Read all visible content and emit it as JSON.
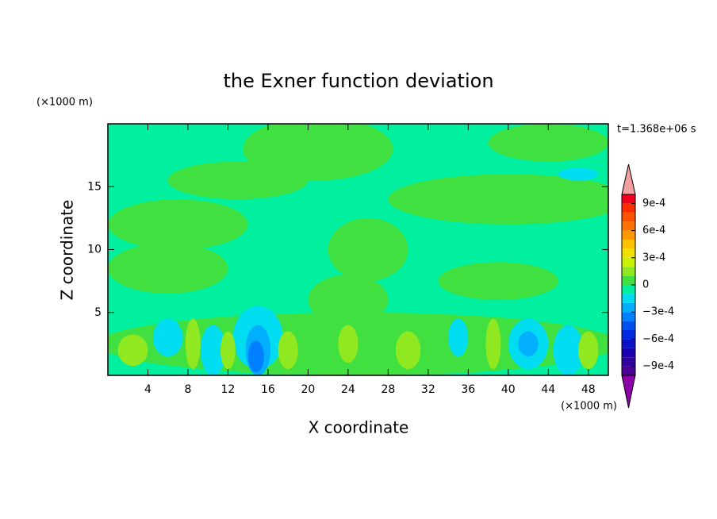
{
  "chart_data": {
    "type": "contour",
    "title": "the Exner function deviation",
    "xlabel": "X coordinate",
    "ylabel": "Z coordinate",
    "x_unit": "(×1000 m)",
    "y_unit": "(×1000 m)",
    "annotation": "t=1.368e+06 s",
    "xlim": [
      0,
      50
    ],
    "ylim": [
      0,
      20
    ],
    "xticks": [
      4,
      8,
      12,
      16,
      20,
      24,
      28,
      32,
      36,
      40,
      44,
      48
    ],
    "yticks": [
      5,
      10,
      15
    ],
    "levels_lim": [
      -0.001,
      0.001
    ],
    "level_step": 0.0001,
    "level_colors": [
      "#4a0096",
      "#30009c",
      "#1a00b0",
      "#0a10c8",
      "#0028e0",
      "#0050f0",
      "#0080ff",
      "#00b0ff",
      "#00dcf0",
      "#00f0a0",
      "#40e040",
      "#90e820",
      "#c8f000",
      "#f0e000",
      "#ffc000",
      "#ff9900",
      "#ff7300",
      "#ff5000",
      "#ff2a00",
      "#f0001e"
    ],
    "under_color": "#8c00a8",
    "over_color": "#f4a0a0",
    "colorbar_ticks": [
      {
        "value": 0.0009,
        "label": "9e-4"
      },
      {
        "value": 0.0006,
        "label": "6e-4"
      },
      {
        "value": 0.0003,
        "label": "3e-4"
      },
      0,
      {
        "value": -0.0003,
        "label": "−3e-4"
      },
      {
        "value": -0.0006,
        "label": "−6e-4"
      },
      {
        "value": -0.0009,
        "label": "−9e-4"
      }
    ],
    "background_value": -5e-05,
    "features": [
      {
        "x": 7,
        "z": 12,
        "w": 14,
        "h": 4,
        "value": 5e-05
      },
      {
        "x": 6,
        "z": 8.5,
        "w": 12,
        "h": 4,
        "value": 5e-05
      },
      {
        "x": 21,
        "z": 18,
        "w": 15,
        "h": 5,
        "value": 5e-05
      },
      {
        "x": 13,
        "z": 15.5,
        "w": 14,
        "h": 3,
        "value": 5e-05
      },
      {
        "x": 40,
        "z": 14,
        "w": 24,
        "h": 4,
        "value": 5e-05
      },
      {
        "x": 44,
        "z": 18.5,
        "w": 12,
        "h": 3,
        "value": 5e-05
      },
      {
        "x": 26,
        "z": 10,
        "w": 8,
        "h": 5,
        "value": 5e-05
      },
      {
        "x": 39,
        "z": 7.5,
        "w": 12,
        "h": 3,
        "value": 5e-05
      },
      {
        "x": 25,
        "z": 2.5,
        "w": 52,
        "h": 5,
        "value": 5e-05
      },
      {
        "x": 24,
        "z": 6,
        "w": 8,
        "h": 4,
        "value": 5e-05
      },
      {
        "x": 6,
        "z": 3,
        "w": 3,
        "h": 3,
        "value": -0.00015
      },
      {
        "x": 10.5,
        "z": 2,
        "w": 2.5,
        "h": 4,
        "value": -0.00015
      },
      {
        "x": 15,
        "z": 3,
        "w": 5,
        "h": 5,
        "value": -0.00015
      },
      {
        "x": 35,
        "z": 3,
        "w": 2,
        "h": 3,
        "value": -0.00015
      },
      {
        "x": 42,
        "z": 2.5,
        "w": 4,
        "h": 4,
        "value": -0.00015
      },
      {
        "x": 46,
        "z": 2,
        "w": 3,
        "h": 4,
        "value": -0.00015
      },
      {
        "x": 47,
        "z": 16,
        "w": 4,
        "h": 1,
        "value": -0.00015
      },
      {
        "x": 15,
        "z": 2,
        "w": 2.5,
        "h": 4,
        "value": -0.00025
      },
      {
        "x": 42,
        "z": 2.5,
        "w": 2,
        "h": 2,
        "value": -0.00025
      },
      {
        "x": 14.8,
        "z": 1.5,
        "w": 1.6,
        "h": 2.5,
        "value": -0.00035
      },
      {
        "x": 2.5,
        "z": 2,
        "w": 3,
        "h": 2.5,
        "value": 0.00015
      },
      {
        "x": 8.5,
        "z": 2.5,
        "w": 1.5,
        "h": 4,
        "value": 0.00015
      },
      {
        "x": 12,
        "z": 2,
        "w": 1.5,
        "h": 3,
        "value": 0.00015
      },
      {
        "x": 18,
        "z": 2,
        "w": 2,
        "h": 3,
        "value": 0.00015
      },
      {
        "x": 24,
        "z": 2.5,
        "w": 2,
        "h": 3,
        "value": 0.00015
      },
      {
        "x": 30,
        "z": 2,
        "w": 2.5,
        "h": 3,
        "value": 0.00015
      },
      {
        "x": 38.5,
        "z": 2.5,
        "w": 1.5,
        "h": 4,
        "value": 0.00015
      },
      {
        "x": 48,
        "z": 2,
        "w": 2,
        "h": 3,
        "value": 0.00015
      }
    ]
  }
}
